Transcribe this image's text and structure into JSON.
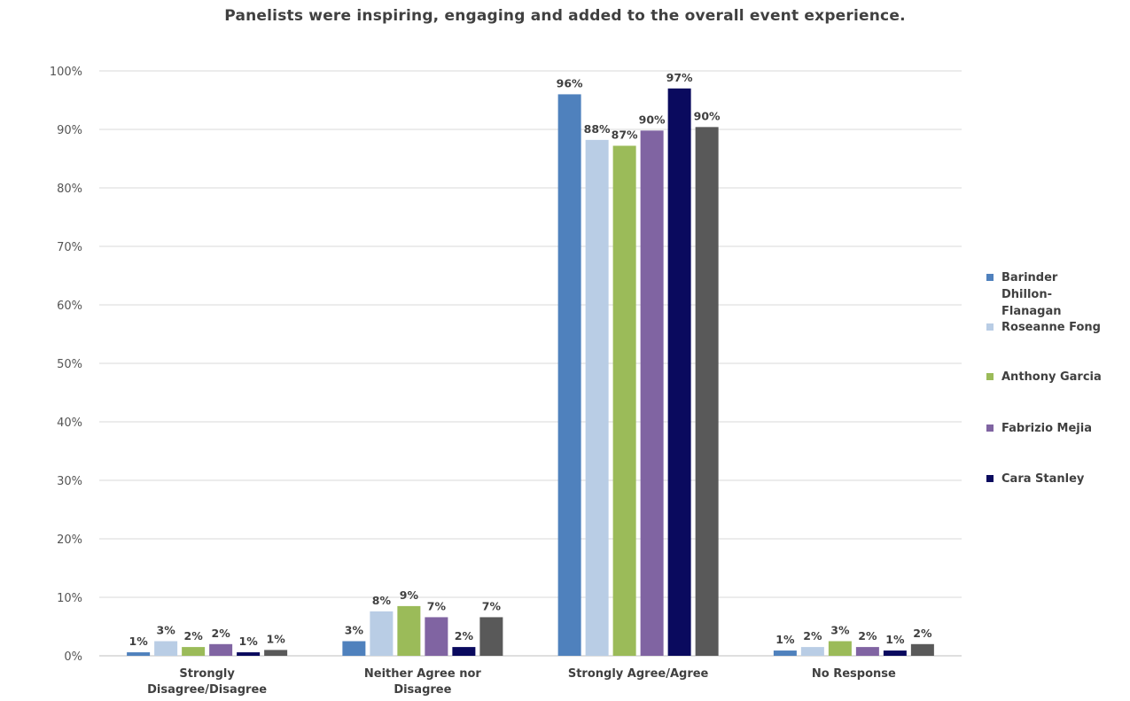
{
  "chart_data": {
    "type": "bar",
    "title": "Panelists were inspiring, engaging and added to the overall event experience.",
    "categories": [
      [
        "Strongly",
        "Disagree/Disagree"
      ],
      [
        "Neither Agree nor",
        "Disagree"
      ],
      [
        "Strongly Agree/Agree"
      ],
      [
        "No Response"
      ]
    ],
    "ylim": [
      0,
      100
    ],
    "y_ticks": [
      "0%",
      "10%",
      "20%",
      "30%",
      "40%",
      "50%",
      "60%",
      "70%",
      "80%",
      "90%",
      "100%"
    ],
    "grid": true,
    "legend_position": "right",
    "series": [
      {
        "name": [
          "Barinder",
          "Dhillon-",
          "Flanagan"
        ],
        "color": "#4f81bd",
        "values": [
          0.6,
          2.5,
          96,
          0.9
        ],
        "labels": [
          "1%",
          "3%",
          "96%",
          "1%"
        ]
      },
      {
        "name": [
          "Roseanne Fong"
        ],
        "color": "#b9cde5",
        "values": [
          2.5,
          7.6,
          88.2,
          1.5
        ],
        "labels": [
          "3%",
          "8%",
          "88%",
          "2%"
        ]
      },
      {
        "name": [
          "Anthony Garcia"
        ],
        "color": "#9bbb59",
        "values": [
          1.5,
          8.5,
          87.2,
          2.5
        ],
        "labels": [
          "2%",
          "9%",
          "87%",
          "3%"
        ]
      },
      {
        "name": [
          "Fabrizio Mejia"
        ],
        "color": "#8064a2",
        "values": [
          2.0,
          6.6,
          89.8,
          1.5
        ],
        "labels": [
          "2%",
          "7%",
          "90%",
          "2%"
        ]
      },
      {
        "name": [
          "Cara Stanley"
        ],
        "color": "#0a0a5e",
        "values": [
          0.6,
          1.5,
          97,
          0.9
        ],
        "labels": [
          "1%",
          "2%",
          "97%",
          "1%"
        ]
      },
      {
        "color": "#595959",
        "values": [
          1.0,
          6.6,
          90.4,
          2.0
        ],
        "labels": [
          "1%",
          "7%",
          "90%",
          "2%"
        ]
      }
    ]
  }
}
